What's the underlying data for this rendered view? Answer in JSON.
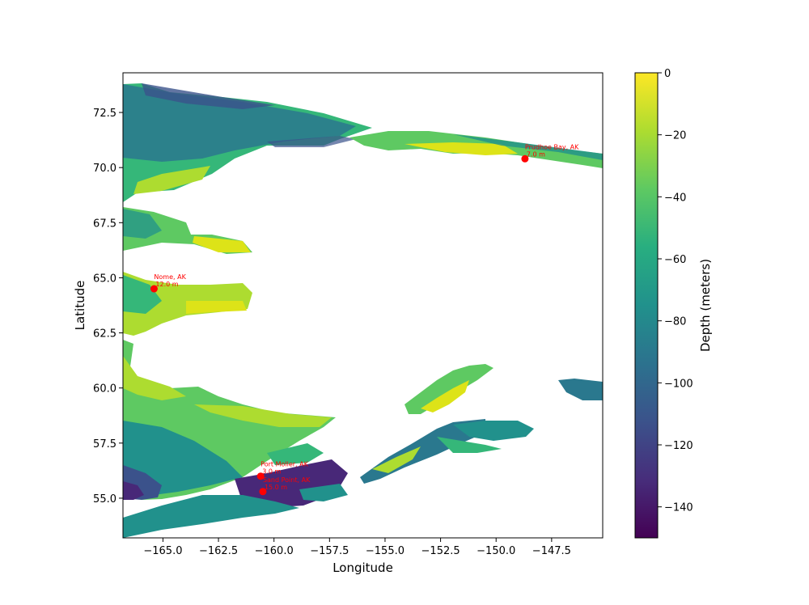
{
  "chart_data": {
    "type": "heatmap",
    "title": "",
    "xlabel": "Longitude",
    "ylabel": "Latitude",
    "xlim": [
      -166.8,
      -145.2
    ],
    "ylim": [
      53.2,
      74.3
    ],
    "xticks": [
      -165.0,
      -162.5,
      -160.0,
      -157.5,
      -155.0,
      -152.5,
      -150.0,
      -147.5
    ],
    "xtick_labels": [
      "−165.0",
      "−162.5",
      "−160.0",
      "−157.5",
      "−155.0",
      "−152.5",
      "−150.0",
      "−147.5"
    ],
    "yticks": [
      55.0,
      57.5,
      60.0,
      62.5,
      65.0,
      67.5,
      70.0,
      72.5
    ],
    "ytick_labels": [
      "55.0",
      "57.5",
      "60.0",
      "62.5",
      "65.0",
      "67.5",
      "70.0",
      "72.5"
    ],
    "colorbar": {
      "label": "Depth (meters)",
      "min": -150,
      "max": 0,
      "colormap": "viridis",
      "ticks": [
        0,
        -20,
        -40,
        -60,
        -80,
        -100,
        -120,
        -140
      ],
      "tick_labels": [
        "0",
        "−20",
        "−40",
        "−60",
        "−80",
        "−100",
        "−120",
        "−140"
      ]
    },
    "stations": [
      {
        "name": "Prudhoe Bay, AK",
        "depth_label": "7.0 m",
        "lon": -148.7,
        "lat": 70.4
      },
      {
        "name": "Nome, AK",
        "depth_label": "12.0 m",
        "lon": -165.4,
        "lat": 64.5
      },
      {
        "name": "Port Moller, AK",
        "depth_label": "3.0 m",
        "lon": -160.6,
        "lat": 56.0
      },
      {
        "name": "Sand Point, AK",
        "depth_label": "15.0 m",
        "lon": -160.5,
        "lat": 55.3
      }
    ],
    "marker_color": "#ff0000",
    "grid": false
  }
}
